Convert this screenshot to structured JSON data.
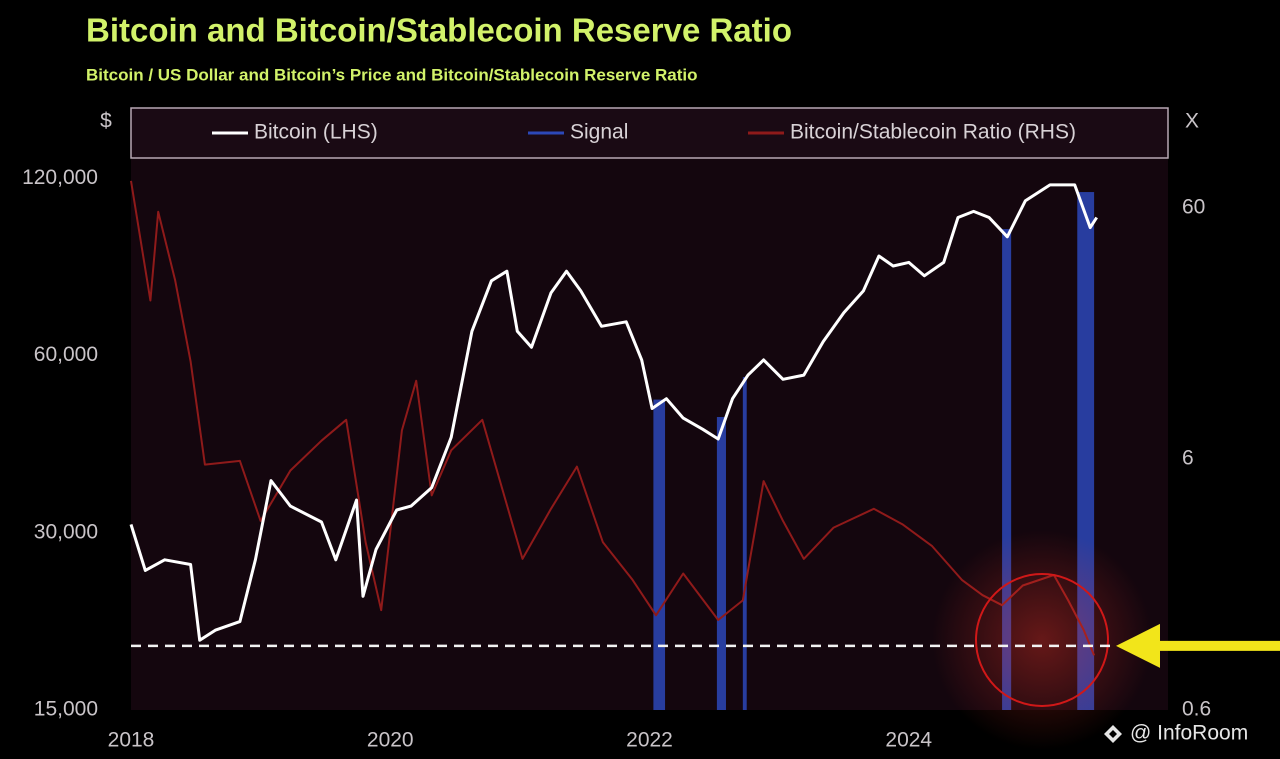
{
  "chart_data": {
    "type": "line",
    "title": "Bitcoin and Bitcoin/Stablecoin Reserve Ratio",
    "subtitle": "Bitcoin / US Dollar  and Bitcoin’s Price and Bitcoin/Stablecoin Reserve Ratio",
    "y_label": "$",
    "y2_label": "X",
    "watermark": "@ InfoRoom",
    "log_scale": true,
    "xlim": [
      2018,
      2026
    ],
    "xticks": [
      2018,
      2020,
      2022,
      2024
    ],
    "ylim": [
      15000,
      130000
    ],
    "yticks": [
      {
        "value": 15000,
        "label": "15,000"
      },
      {
        "value": 30000,
        "label": "30,000"
      },
      {
        "value": 60000,
        "label": "60,000"
      },
      {
        "value": 120000,
        "label": "120,000"
      }
    ],
    "y2lim": [
      0.6,
      95
    ],
    "y2ticks": [
      0.6,
      6,
      60
    ],
    "threshold_y2": 1.08,
    "series": [
      {
        "name": "Bitcoin (LHS)",
        "color": "#ffffff",
        "x": [
          2018.0,
          2018.11,
          2018.26,
          2018.46,
          2018.53,
          2018.65,
          2018.84,
          2018.96,
          2019.08,
          2019.23,
          2019.47,
          2019.58,
          2019.74,
          2019.79,
          2019.89,
          2020.05,
          2020.16,
          2020.32,
          2020.47,
          2020.63,
          2020.78,
          2020.9,
          2020.98,
          2021.09,
          2021.24,
          2021.36,
          2021.47,
          2021.63,
          2021.82,
          2021.94,
          2022.02,
          2022.13,
          2022.26,
          2022.41,
          2022.53,
          2022.64,
          2022.76,
          2022.88,
          2023.03,
          2023.19,
          2023.34,
          2023.5,
          2023.65,
          2023.77,
          2023.88,
          2024.0,
          2024.12,
          2024.27,
          2024.38,
          2024.5,
          2024.62,
          2024.76,
          2024.9,
          2025.09,
          2025.28,
          2025.4,
          2025.45
        ],
        "values": [
          31000,
          25900,
          27000,
          26500,
          19700,
          20500,
          21200,
          27000,
          36800,
          33300,
          31300,
          27000,
          34100,
          23400,
          28100,
          32800,
          33300,
          35800,
          43600,
          66000,
          80400,
          83500,
          66000,
          62000,
          76700,
          83500,
          77300,
          67300,
          68500,
          59000,
          48800,
          50700,
          47000,
          45000,
          43300,
          50700,
          55600,
          59000,
          54700,
          55600,
          63400,
          71000,
          77300,
          88600,
          85200,
          86400,
          82000,
          86400,
          103000,
          105500,
          103000,
          95500,
          110000,
          117000,
          117000,
          99000,
          103000
        ]
      },
      {
        "name": "Signal",
        "color": "#2c48b8",
        "periods": [
          [
            2022.03,
            2022.12
          ],
          [
            2022.52,
            2022.59
          ],
          [
            2022.72,
            2022.75
          ],
          [
            2024.72,
            2024.79
          ],
          [
            2025.3,
            2025.43
          ]
        ]
      },
      {
        "name": "Bitcoin/Stablecoin Ratio (RHS)",
        "color": "#8f1a1a",
        "axis": "y2",
        "x": [
          2018.0,
          2018.15,
          2018.21,
          2018.34,
          2018.46,
          2018.57,
          2018.84,
          2019.0,
          2019.23,
          2019.47,
          2019.66,
          2019.81,
          2019.93,
          2020.09,
          2020.2,
          2020.32,
          2020.47,
          2020.71,
          2021.02,
          2021.24,
          2021.44,
          2021.64,
          2021.87,
          2022.05,
          2022.26,
          2022.53,
          2022.72,
          2022.88,
          2023.03,
          2023.19,
          2023.42,
          2023.73,
          2023.95,
          2024.18,
          2024.41,
          2024.57,
          2024.72,
          2024.88,
          2025.12,
          2025.23,
          2025.35,
          2025.43
        ],
        "values": [
          77,
          25.7,
          58,
          31,
          14.7,
          5.7,
          5.9,
          3.4,
          5.4,
          7.1,
          8.6,
          2.8,
          1.5,
          7.8,
          12.3,
          4.3,
          6.5,
          8.6,
          2.4,
          3.8,
          5.6,
          2.8,
          1.98,
          1.43,
          2.1,
          1.37,
          1.64,
          4.9,
          3.4,
          2.4,
          3.2,
          3.8,
          3.3,
          2.7,
          1.98,
          1.72,
          1.57,
          1.88,
          2.07,
          1.64,
          1.25,
          0.99
        ]
      }
    ]
  }
}
